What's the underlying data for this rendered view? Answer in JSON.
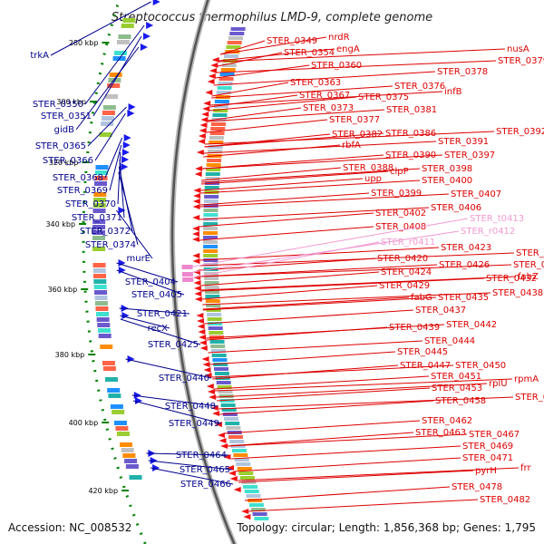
{
  "title": "Streptococcus thermophilus LMD-9, complete genome",
  "footer": {
    "accession": "Accession: NC_008532",
    "summary": "Topology: circular; Length: 1,856,368 bp; Genes: 1,795"
  },
  "colors": {
    "forward_genes": "#1a1aee",
    "reverse_genes": "#ee1111",
    "rna_genes": "#ee88cc",
    "forward_label": "#00008b",
    "reverse_label": "#dd0000",
    "rna_label": "#f29ad2",
    "ticks": "#008000"
  },
  "scale_ticks": [
    "280 kbp",
    "300 kbp",
    "320 kbp",
    "340 kbp",
    "360 kbp",
    "380 kbp",
    "400 kbp",
    "420 kbp"
  ],
  "forward_labels": [
    "trkA",
    "STER_0350",
    "STER_0351",
    "gidB",
    "STER_0365",
    "STER_0366",
    "STER_0368",
    "STER_0369",
    "STER_0370",
    "STER_0371",
    "STER_0372",
    "STER_0374",
    "murE",
    "STER_0404",
    "STER_0405",
    "STER_0421",
    "recX",
    "STER_0425",
    "STER_0440",
    "STER_0448",
    "STER_0449",
    "STER_0464",
    "STER_0465",
    "STER_0466"
  ],
  "reverse_labels": [
    "STER_0349",
    "nrdR",
    "STER_0354",
    "engA",
    "STER_0360",
    "STER_0363",
    "STER_0367",
    "STER_0373",
    "STER_0375",
    "STER_0376",
    "STER_0377",
    "STER_0378",
    "STER_0379",
    "nusA",
    "infB",
    "STER_0381",
    "STER_0382",
    "STER_0386",
    "rbfA",
    "STER_0388",
    "STER_0390",
    "STER_0391",
    "STER_0392",
    "STER_0397",
    "upp",
    "clpP",
    "STER_0398",
    "STER_0399",
    "STER_0400",
    "STER_0402",
    "STER_0406",
    "STER_0407",
    "STER_0408",
    "STER_0420",
    "STER_0423",
    "STER_0424",
    "STER_0426",
    "STER_0427",
    "STER_0429",
    "STER_0431",
    "STER_0432",
    "fabZ",
    "fabG",
    "STER_0435",
    "STER_0437",
    "STER_0438",
    "STER_0439",
    "STER_0442",
    "STER_0444",
    "STER_0445",
    "STER_0447",
    "STER_0450",
    "STER_0451",
    "rplU",
    "rpmA",
    "STER_0453",
    "STER_0458",
    "STER_0460",
    "STER_0462",
    "STER_0463",
    "STER_0467",
    "STER_0469",
    "STER_0471",
    "pyrH",
    "frr",
    "STER_0478",
    "STER_0482"
  ],
  "rna_labels": [
    "STER_t0413",
    "STER_r0412",
    "STER_r0411"
  ]
}
